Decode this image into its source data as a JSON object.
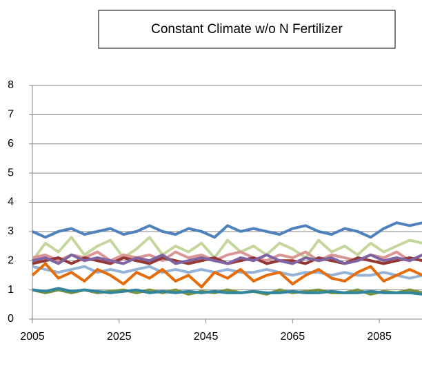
{
  "chart_data": {
    "type": "line",
    "title": "Constant Climate w/o N Fertilizer",
    "x": [
      2005,
      2008,
      2011,
      2014,
      2017,
      2020,
      2023,
      2026,
      2029,
      2032,
      2035,
      2038,
      2041,
      2044,
      2047,
      2050,
      2053,
      2056,
      2059,
      2062,
      2065,
      2068,
      2071,
      2074,
      2077,
      2080,
      2083,
      2086,
      2089,
      2092,
      2095
    ],
    "series": [
      {
        "color": "#4f81bd",
        "values": [
          3.0,
          2.8,
          3.0,
          3.1,
          2.9,
          3.0,
          3.1,
          2.9,
          3.0,
          3.2,
          3.0,
          2.9,
          3.1,
          3.0,
          2.8,
          3.2,
          3.0,
          3.1,
          3.0,
          2.9,
          3.1,
          3.2,
          3.0,
          2.9,
          3.1,
          3.0,
          2.8,
          3.1,
          3.3,
          3.2,
          3.3
        ]
      },
      {
        "color": "#c3d69b",
        "values": [
          2.0,
          2.6,
          2.3,
          2.8,
          2.2,
          2.5,
          2.7,
          2.1,
          2.4,
          2.8,
          2.2,
          2.5,
          2.3,
          2.6,
          2.1,
          2.7,
          2.3,
          2.5,
          2.2,
          2.6,
          2.4,
          2.1,
          2.7,
          2.3,
          2.5,
          2.2,
          2.6,
          2.3,
          2.5,
          2.7,
          2.6
        ]
      },
      {
        "color": "#d99694",
        "values": [
          2.1,
          2.2,
          2.0,
          2.2,
          2.1,
          2.3,
          2.0,
          2.2,
          2.1,
          2.2,
          2.0,
          2.3,
          2.1,
          2.2,
          2.0,
          2.2,
          2.3,
          2.1,
          2.0,
          2.2,
          2.1,
          2.3,
          2.0,
          2.2,
          2.1,
          2.0,
          2.2,
          2.1,
          2.3,
          2.0,
          2.2
        ]
      },
      {
        "color": "#953735",
        "values": [
          1.9,
          2.0,
          2.1,
          1.9,
          2.1,
          2.0,
          1.9,
          2.1,
          2.0,
          1.9,
          2.1,
          2.0,
          1.9,
          2.0,
          2.1,
          1.9,
          2.0,
          2.1,
          1.9,
          2.0,
          2.0,
          1.9,
          2.1,
          2.0,
          1.9,
          2.1,
          2.0,
          1.9,
          2.0,
          2.1,
          2.0
        ]
      },
      {
        "color": "#8064a2",
        "values": [
          2.0,
          2.1,
          1.9,
          2.2,
          2.0,
          2.1,
          2.0,
          1.9,
          2.1,
          2.0,
          2.2,
          1.9,
          2.0,
          2.1,
          2.0,
          1.9,
          2.1,
          2.0,
          2.2,
          2.0,
          1.9,
          2.1,
          2.0,
          2.1,
          1.9,
          2.0,
          2.2,
          2.0,
          2.1,
          2.0,
          2.2
        ]
      },
      {
        "color": "#95b3d7",
        "values": [
          1.8,
          1.7,
          1.6,
          1.7,
          1.8,
          1.6,
          1.7,
          1.6,
          1.7,
          1.8,
          1.6,
          1.7,
          1.6,
          1.7,
          1.6,
          1.7,
          1.6,
          1.6,
          1.7,
          1.6,
          1.5,
          1.6,
          1.6,
          1.5,
          1.6,
          1.5,
          1.5,
          1.6,
          1.5,
          1.4,
          1.5
        ]
      },
      {
        "color": "#e46c0a",
        "values": [
          1.5,
          1.9,
          1.4,
          1.6,
          1.3,
          1.7,
          1.5,
          1.2,
          1.6,
          1.4,
          1.7,
          1.3,
          1.5,
          1.1,
          1.6,
          1.4,
          1.7,
          1.3,
          1.5,
          1.6,
          1.2,
          1.5,
          1.7,
          1.4,
          1.3,
          1.6,
          1.8,
          1.3,
          1.5,
          1.7,
          1.5
        ]
      },
      {
        "color": "#77933c",
        "values": [
          1.0,
          0.9,
          1.0,
          0.9,
          1.0,
          0.9,
          0.95,
          1.0,
          0.9,
          1.0,
          0.9,
          1.0,
          0.85,
          0.95,
          0.9,
          1.0,
          0.9,
          0.95,
          0.85,
          1.0,
          0.9,
          0.95,
          1.0,
          0.9,
          0.9,
          1.0,
          0.85,
          0.95,
          0.9,
          1.0,
          0.9
        ]
      },
      {
        "color": "#31859c",
        "values": [
          1.0,
          0.95,
          1.05,
          0.95,
          1.0,
          0.95,
          0.9,
          0.95,
          1.0,
          0.9,
          0.95,
          0.9,
          0.95,
          0.9,
          0.95,
          0.9,
          0.9,
          0.95,
          0.9,
          0.9,
          0.95,
          0.9,
          0.9,
          0.95,
          0.9,
          0.9,
          0.95,
          0.9,
          0.9,
          0.9,
          0.85
        ]
      }
    ],
    "xlim": [
      2005,
      2095
    ],
    "xticks": [
      2005,
      2025,
      2045,
      2065,
      2085
    ],
    "ylim": [
      0,
      8
    ],
    "yticks": [
      0,
      1,
      2,
      3,
      4,
      5,
      6,
      7,
      8
    ],
    "grid": true
  }
}
